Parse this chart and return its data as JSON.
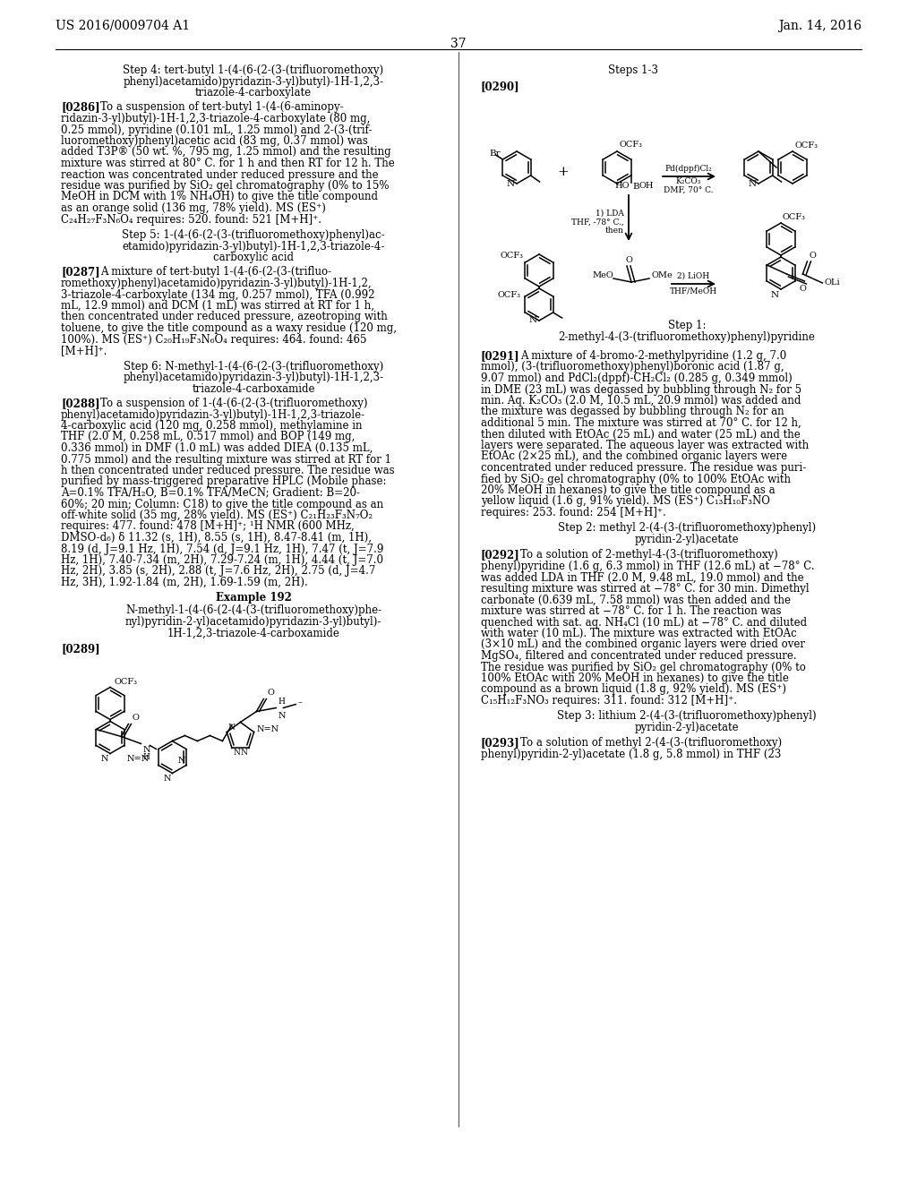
{
  "background_color": "#ffffff",
  "header_left": "US 2016/0009704 A1",
  "header_right": "Jan. 14, 2016",
  "page_number": "37"
}
